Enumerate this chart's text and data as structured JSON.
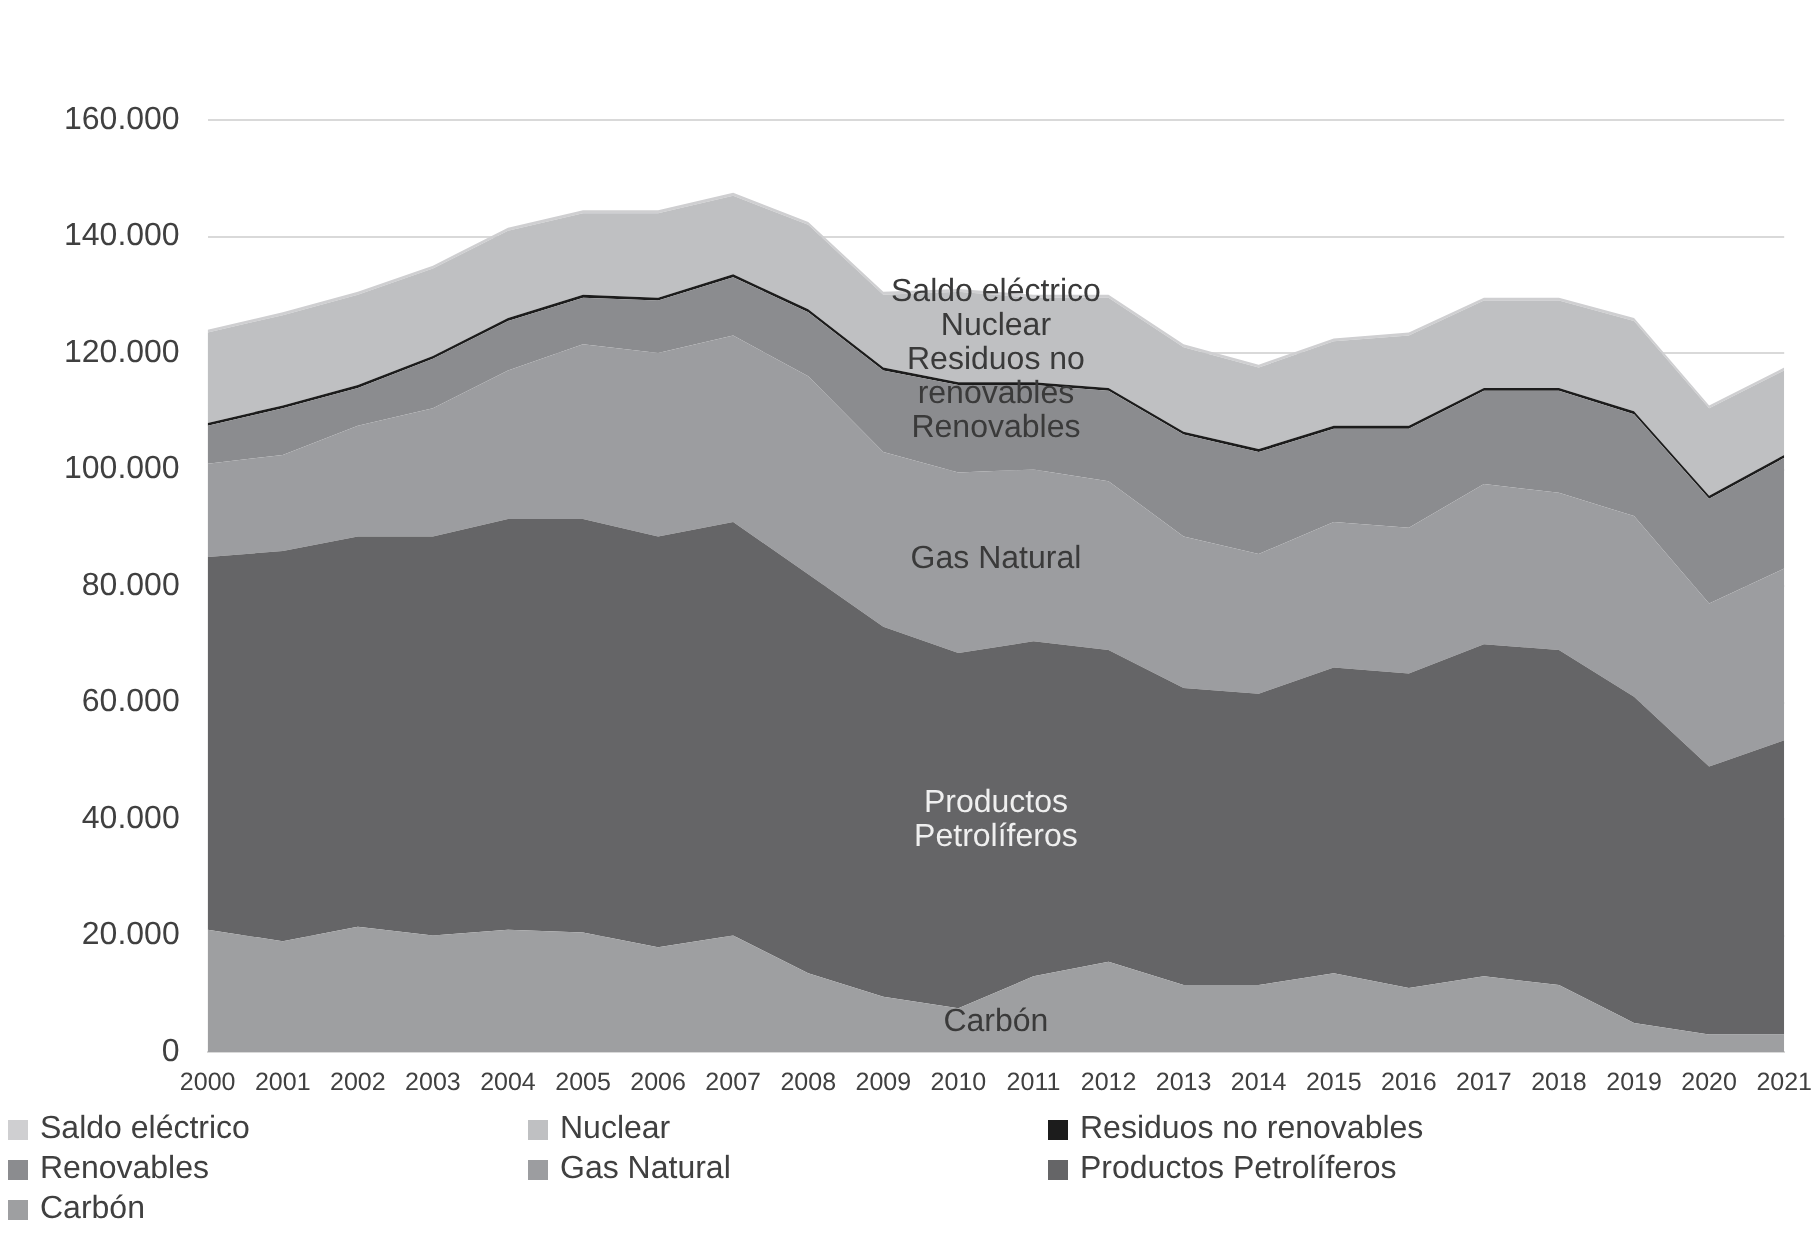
{
  "chart_data": {
    "type": "area",
    "stacked": true,
    "categories": [
      "2000",
      "2001",
      "2002",
      "2003",
      "2004",
      "2005",
      "2006",
      "2007",
      "2008",
      "2009",
      "2010",
      "2011",
      "2012",
      "2013",
      "2014",
      "2015",
      "2016",
      "2017",
      "2018",
      "2019",
      "2020",
      "2021"
    ],
    "series": [
      {
        "name": "Carbón",
        "color": "#9e9fa1",
        "values": [
          21000,
          19000,
          21500,
          20000,
          21000,
          20500,
          18000,
          20000,
          13500,
          9500,
          7500,
          13000,
          15500,
          11500,
          11500,
          13500,
          11000,
          13000,
          11500,
          5000,
          3000,
          3000
        ]
      },
      {
        "name": "Productos Petrolíferos",
        "color": "#656567",
        "values": [
          64000,
          67000,
          67000,
          68500,
          70500,
          71000,
          70500,
          71000,
          68500,
          63500,
          61000,
          57500,
          53500,
          51000,
          50000,
          52500,
          54000,
          57000,
          57500,
          56000,
          46000,
          50500
        ]
      },
      {
        "name": "Gas Natural",
        "color": "#9c9da0",
        "values": [
          16000,
          16500,
          19000,
          22000,
          25500,
          30000,
          31500,
          32000,
          34000,
          30000,
          31000,
          29500,
          29000,
          26000,
          24000,
          25000,
          25000,
          27500,
          27000,
          31000,
          28000,
          29500
        ]
      },
      {
        "name": "Renovables",
        "color": "#8b8c8f",
        "values": [
          6500,
          8000,
          6500,
          8500,
          8500,
          8000,
          9000,
          10000,
          11000,
          14000,
          15000,
          14500,
          15500,
          17500,
          17500,
          16000,
          17000,
          16000,
          17500,
          17500,
          18000,
          19000
        ]
      },
      {
        "name": "Residuos no renovables",
        "color": "#1c1c1c",
        "values": [
          500,
          500,
          500,
          500,
          500,
          500,
          500,
          500,
          500,
          500,
          500,
          500,
          500,
          500,
          500,
          500,
          500,
          500,
          500,
          500,
          500,
          500
        ]
      },
      {
        "name": "Nuclear",
        "color": "#bfc0c2",
        "values": [
          15500,
          15500,
          15500,
          15000,
          15000,
          14000,
          14500,
          13500,
          14500,
          12500,
          15500,
          14500,
          15500,
          14500,
          14000,
          14500,
          15500,
          15000,
          15000,
          15500,
          15000,
          14500
        ]
      },
      {
        "name": "Saldo eléctrico",
        "color": "#cfcfd1",
        "values": [
          500,
          500,
          500,
          500,
          500,
          500,
          500,
          500,
          500,
          500,
          500,
          500,
          500,
          500,
          500,
          500,
          500,
          500,
          500,
          500,
          500,
          500
        ]
      }
    ],
    "ylim": [
      0,
      160000
    ],
    "yticks": [
      0,
      {
        "value": 20000,
        "label": "20.000"
      },
      {
        "value": 40000,
        "label": "40.000"
      },
      {
        "value": 60000,
        "label": "60.000"
      },
      {
        "value": 80000,
        "label": "80.000"
      },
      {
        "value": 100000,
        "label": "100.000"
      },
      {
        "value": 120000,
        "label": "120.000"
      },
      {
        "value": 140000,
        "label": "140.000"
      },
      {
        "value": 160000,
        "label": "160.000"
      }
    ],
    "grid": "y",
    "legend": "bottom"
  }
}
